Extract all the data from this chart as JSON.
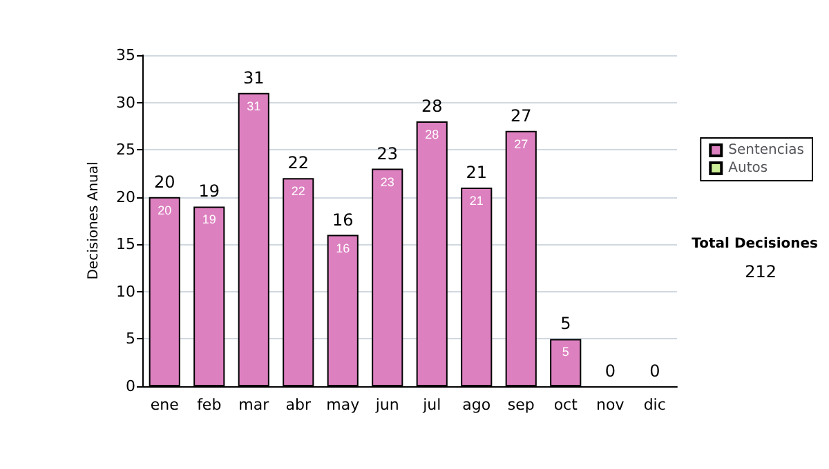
{
  "chart_data": {
    "type": "bar",
    "ylabel": "Decisiones Anual",
    "categories": [
      "ene",
      "feb",
      "mar",
      "abr",
      "may",
      "jun",
      "jul",
      "ago",
      "sep",
      "oct",
      "nov",
      "dic"
    ],
    "series": [
      {
        "name": "Sentencias",
        "color": "#dd80c0",
        "values": [
          20,
          19,
          31,
          22,
          16,
          23,
          28,
          21,
          27,
          5,
          0,
          0
        ],
        "value_labels": [
          "20",
          "19",
          "31",
          "22",
          "16",
          "23",
          "28",
          "21",
          "27",
          "5",
          null,
          null
        ]
      },
      {
        "name": "Autos",
        "color": "#ccee99",
        "values": [
          0,
          0,
          0,
          0,
          0,
          0,
          0,
          0,
          0,
          0,
          0,
          0
        ]
      }
    ],
    "stacked": true,
    "totals": [
      "20",
      "19",
      "31",
      "22",
      "16",
      "23",
      "28",
      "21",
      "27",
      "5",
      "0",
      "0"
    ],
    "ylim": [
      0,
      35
    ],
    "yticks": [
      0,
      5,
      10,
      15,
      20,
      25,
      30,
      35
    ],
    "grid": "y",
    "legend": "right",
    "annotations": [
      "Total Decisiones",
      "212"
    ]
  }
}
